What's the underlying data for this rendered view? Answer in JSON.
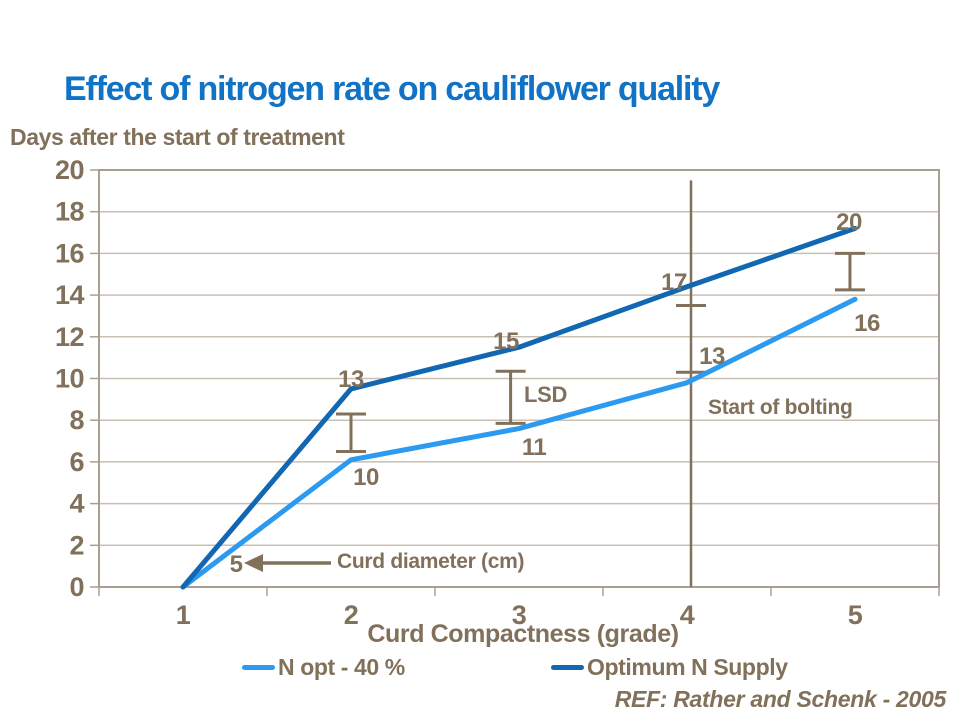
{
  "slide": {
    "title": "Effect of nitrogen rate on cauliflower quality",
    "reference": "REF: Rather and Schenk - 2005"
  },
  "colors": {
    "title_blue": "#1173C5",
    "text_brown": "#81705A",
    "gridline": "#C7C0B3",
    "plot_border": "#A89F93",
    "series_light_blue": "#2B9AF0",
    "series_dark_blue": "#1267B2"
  },
  "chart_data": {
    "type": "line",
    "x_axis_title": "Curd Compactness (grade)",
    "y_axis_title": "Days after the start of treatment",
    "x": [
      1,
      2,
      3,
      4,
      5
    ],
    "x_tick_labels": [
      "1",
      "2",
      "3",
      "4",
      "5"
    ],
    "ylim": [
      0,
      20
    ],
    "y_tick_step": 2,
    "y_tick_labels": [
      "0",
      "2",
      "4",
      "6",
      "8",
      "10",
      "12",
      "14",
      "16",
      "18",
      "20"
    ],
    "grid": "horizontal",
    "legend_position": "bottom",
    "series": [
      {
        "name": "N opt - 40 %",
        "color": "#2B9AF0",
        "values": [
          0,
          6.1,
          7.6,
          9.8,
          13.8
        ],
        "point_labels": [
          "5",
          "10",
          "11",
          "13",
          "16"
        ],
        "point_labels_meaning": "Curd diameter (cm)"
      },
      {
        "name": "Optimum N Supply",
        "color": "#1267B2",
        "values": [
          0,
          9.5,
          11.5,
          14.4,
          17.2
        ],
        "point_labels": [
          "",
          "13",
          "15",
          "17",
          "20"
        ],
        "point_labels_meaning": "Curd diameter (cm)"
      }
    ],
    "error_bars": [
      {
        "x": 2.0,
        "y_low": 6.5,
        "y_high": 8.3,
        "style": "I-beam"
      },
      {
        "x": 2.95,
        "y_low": 7.85,
        "y_high": 10.35,
        "style": "I-beam",
        "label": "LSD"
      },
      {
        "x": 4.0,
        "y_low": 10.3,
        "y_high": 13.5,
        "style": "caps-only"
      },
      {
        "x": 4.97,
        "y_low": 14.25,
        "y_high": 16.0,
        "style": "I-beam"
      }
    ],
    "reference_lines": [
      {
        "axis": "x",
        "x": 4.0,
        "from_y": 0,
        "to_y": 19.5,
        "label": "Start of bolting"
      }
    ],
    "annotations": {
      "lsd_label": "LSD",
      "bolting_label": "Start of bolting",
      "curd_diameter_label": "Curd diameter (cm)"
    }
  }
}
